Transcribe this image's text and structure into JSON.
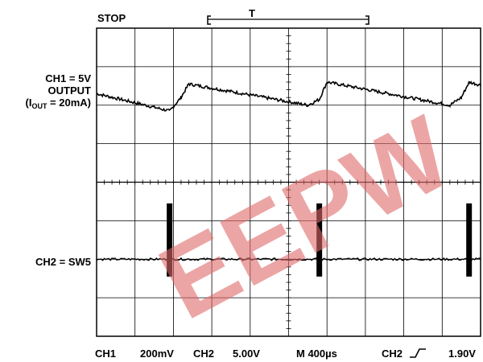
{
  "header": {
    "status": "STOP",
    "trigger_marker": "T"
  },
  "channel_labels": {
    "ch1_line1": "CH1 = 5V",
    "ch1_line2": "OUTPUT",
    "ch1_line3_prefix": "(I",
    "ch1_line3_sub": "OUT",
    "ch1_line3_suffix": " = 20mA)",
    "ch2": "CH2 = SW5"
  },
  "footer": {
    "ch1_name": "CH1",
    "ch1_scale": "200mV",
    "ch2_name": "CH2",
    "ch2_scale": "5.00V",
    "timebase": "M 400µs",
    "trigger_source": "CH2",
    "trigger_level": "1.90V"
  },
  "watermark": {
    "text": "EEPW",
    "color": "#e06a6a"
  },
  "chart_data": {
    "type": "line",
    "grid": true,
    "divisions": {
      "x": 10,
      "y": 8
    },
    "series": [
      {
        "id": "ch1",
        "x_div": [
          0,
          1.9,
          2.2,
          2.4,
          5.5,
          5.8,
          6.0,
          9.2,
          9.5,
          9.7,
          12.0
        ],
        "y_div": [
          6.3,
          5.85,
          6.2,
          6.55,
          6.0,
          6.15,
          6.6,
          6.0,
          6.2,
          6.6,
          6.0
        ],
        "noise_div": 0.04
      },
      {
        "id": "ch2",
        "baseline_div": 2.0,
        "spikes_x_div": [
          1.9,
          5.8,
          9.7
        ],
        "spike_range_div": [
          1.55,
          3.45
        ]
      }
    ],
    "colors": {
      "trace": "#000000",
      "grid": "#000000"
    }
  }
}
